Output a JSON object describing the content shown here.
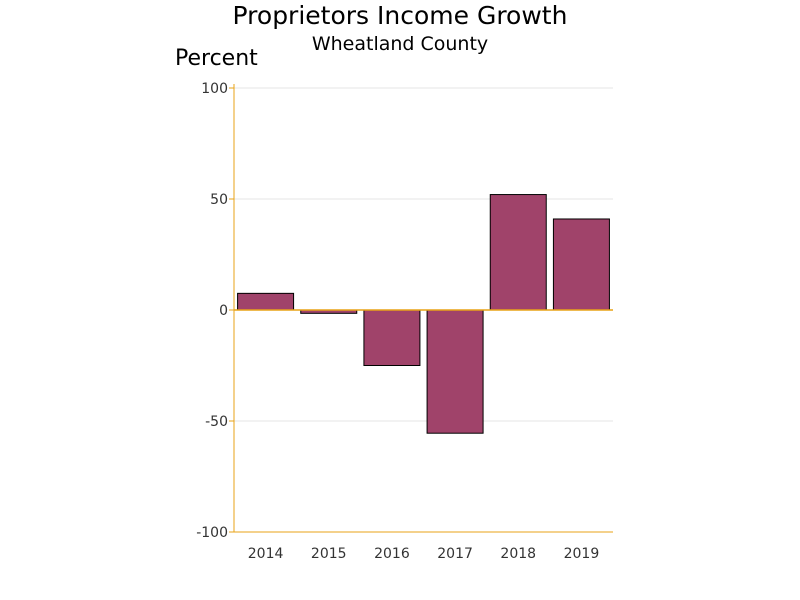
{
  "chart_data": {
    "type": "bar",
    "title": "Proprietors Income Growth",
    "subtitle": "Wheatland County",
    "ylabel": "Percent",
    "xlabel": "",
    "categories": [
      "2014",
      "2015",
      "2016",
      "2017",
      "2018",
      "2019"
    ],
    "values": [
      7.5,
      -1.5,
      -25,
      -55.5,
      52,
      41
    ],
    "ylim": [
      -100,
      100
    ],
    "yticks": [
      100,
      50,
      0,
      -50,
      -100
    ],
    "grid": true,
    "bar_color": "#A0436A",
    "axis_color": "#E8A317"
  }
}
